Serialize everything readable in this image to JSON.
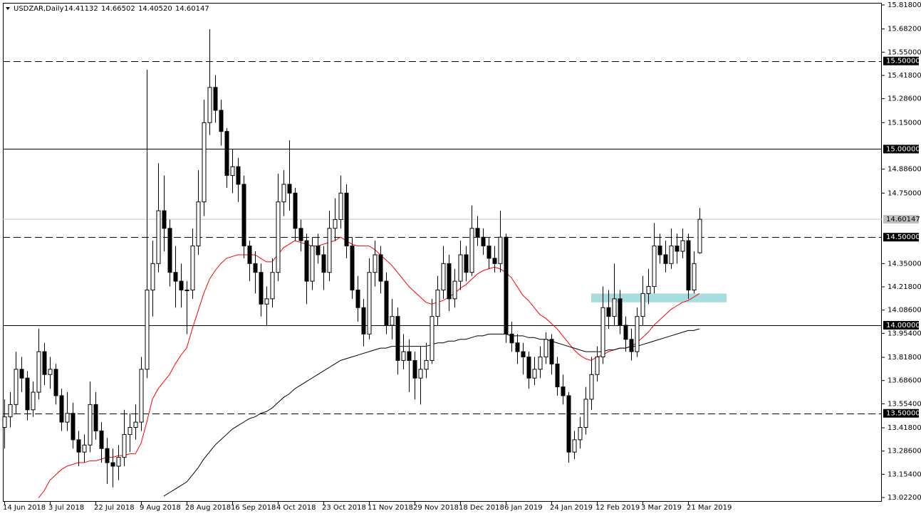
{
  "chart_data": {
    "type": "candlestick",
    "title": "USDZAR,Daily",
    "last_bar_labels": [
      "14.41132",
      "14.66502",
      "14.40520",
      "14.60147"
    ],
    "categories": [
      "14 Jun 2018",
      null,
      null,
      null,
      null,
      null,
      null,
      null,
      "3 Jul 2018",
      null,
      null,
      null,
      null,
      null,
      null,
      null,
      "22 Jul 2018",
      null,
      null,
      null,
      null,
      null,
      null,
      null,
      "9 Aug 2018",
      null,
      null,
      null,
      null,
      null,
      null,
      null,
      "28 Aug 2018",
      null,
      null,
      null,
      null,
      null,
      null,
      null,
      "16 Sep 2018",
      null,
      null,
      null,
      null,
      null,
      null,
      null,
      "4 Oct 2018",
      null,
      null,
      null,
      null,
      null,
      null,
      null,
      "23 Oct 2018",
      null,
      null,
      null,
      null,
      null,
      null,
      null,
      "11 Nov 2018",
      null,
      null,
      null,
      null,
      null,
      null,
      null,
      "29 Nov 2018",
      null,
      null,
      null,
      null,
      null,
      null,
      null,
      "18 Dec 2018",
      null,
      null,
      null,
      null,
      null,
      null,
      null,
      "6 Jan 2019",
      null,
      null,
      null,
      null,
      null,
      null,
      null,
      "24 Jan 2019",
      null,
      null,
      null,
      null,
      null,
      null,
      null,
      "12 Feb 2019",
      null,
      null,
      null,
      null,
      null,
      null,
      null,
      "3 Mar 2019",
      null,
      null,
      null,
      null,
      null,
      null,
      null,
      "21 Mar 2019",
      null,
      null
    ],
    "candles": [
      [
        13.42,
        13.58,
        13.3,
        13.48
      ],
      [
        13.48,
        13.62,
        13.42,
        13.55
      ],
      [
        13.55,
        13.85,
        13.5,
        13.75
      ],
      [
        13.75,
        13.82,
        13.62,
        13.7
      ],
      [
        13.7,
        13.74,
        13.46,
        13.52
      ],
      [
        13.52,
        13.68,
        13.48,
        13.62
      ],
      [
        13.62,
        13.98,
        13.58,
        13.85
      ],
      [
        13.85,
        13.9,
        13.66,
        13.72
      ],
      [
        13.72,
        13.82,
        13.64,
        13.75
      ],
      [
        13.75,
        13.78,
        13.55,
        13.6
      ],
      [
        13.6,
        13.64,
        13.4,
        13.45
      ],
      [
        13.45,
        13.62,
        13.4,
        13.5
      ],
      [
        13.5,
        13.56,
        13.3,
        13.35
      ],
      [
        13.35,
        13.4,
        13.2,
        13.28
      ],
      [
        13.28,
        13.38,
        13.22,
        13.32
      ],
      [
        13.32,
        13.68,
        13.28,
        13.55
      ],
      [
        13.55,
        13.62,
        13.35,
        13.4
      ],
      [
        13.4,
        13.45,
        13.22,
        13.3
      ],
      [
        13.3,
        13.36,
        13.1,
        13.22
      ],
      [
        13.22,
        13.3,
        13.08,
        13.2
      ],
      [
        13.2,
        13.32,
        13.12,
        13.25
      ],
      [
        13.25,
        13.52,
        13.2,
        13.38
      ],
      [
        13.38,
        13.5,
        13.28,
        13.42
      ],
      [
        13.42,
        13.55,
        13.35,
        13.45
      ],
      [
        13.45,
        13.82,
        13.4,
        13.75
      ],
      [
        13.75,
        15.45,
        13.7,
        14.2
      ],
      [
        14.2,
        14.48,
        14.05,
        14.35
      ],
      [
        14.35,
        14.92,
        14.3,
        14.65
      ],
      [
        14.65,
        14.85,
        14.42,
        14.55
      ],
      [
        14.55,
        14.6,
        14.22,
        14.3
      ],
      [
        14.3,
        14.45,
        14.1,
        14.25
      ],
      [
        14.25,
        14.35,
        14.1,
        14.2
      ],
      [
        14.2,
        14.25,
        13.95,
        14.2
      ],
      [
        14.2,
        14.55,
        14.15,
        14.45
      ],
      [
        14.45,
        14.88,
        14.4,
        14.7
      ],
      [
        14.7,
        15.28,
        14.62,
        15.15
      ],
      [
        15.15,
        15.68,
        15.08,
        15.35
      ],
      [
        15.35,
        15.42,
        15.15,
        15.22
      ],
      [
        15.22,
        15.28,
        15.02,
        15.1
      ],
      [
        15.1,
        15.12,
        14.78,
        14.85
      ],
      [
        14.85,
        15.0,
        14.75,
        14.9
      ],
      [
        14.9,
        14.95,
        14.7,
        14.8
      ],
      [
        14.8,
        14.85,
        14.38,
        14.45
      ],
      [
        14.45,
        14.48,
        14.25,
        14.35
      ],
      [
        14.35,
        14.42,
        14.18,
        14.3
      ],
      [
        14.3,
        14.35,
        14.05,
        14.12
      ],
      [
        14.12,
        14.22,
        14.0,
        14.15
      ],
      [
        14.15,
        14.38,
        14.1,
        14.3
      ],
      [
        14.3,
        14.86,
        14.25,
        14.7
      ],
      [
        14.7,
        14.88,
        14.62,
        14.8
      ],
      [
        14.8,
        15.05,
        14.65,
        14.75
      ],
      [
        14.75,
        14.78,
        14.48,
        14.55
      ],
      [
        14.55,
        14.6,
        14.42,
        14.48
      ],
      [
        14.48,
        14.52,
        14.12,
        14.25
      ],
      [
        14.25,
        14.5,
        14.2,
        14.45
      ],
      [
        14.45,
        14.52,
        14.35,
        14.4
      ],
      [
        14.4,
        14.45,
        14.2,
        14.3
      ],
      [
        14.3,
        14.65,
        14.25,
        14.55
      ],
      [
        14.55,
        14.72,
        14.48,
        14.6
      ],
      [
        14.6,
        14.85,
        14.55,
        14.75
      ],
      [
        14.75,
        14.8,
        14.38,
        14.45
      ],
      [
        14.45,
        14.5,
        14.15,
        14.2
      ],
      [
        14.2,
        14.28,
        14.02,
        14.1
      ],
      [
        14.1,
        14.15,
        13.88,
        13.95
      ],
      [
        13.95,
        14.38,
        13.92,
        14.3
      ],
      [
        14.3,
        14.48,
        14.22,
        14.4
      ],
      [
        14.4,
        14.45,
        14.18,
        14.25
      ],
      [
        14.25,
        14.3,
        13.95,
        14.0
      ],
      [
        14.0,
        14.15,
        13.92,
        14.05
      ],
      [
        14.05,
        14.1,
        13.72,
        13.8
      ],
      [
        13.8,
        13.95,
        13.75,
        13.85
      ],
      [
        13.85,
        13.92,
        13.62,
        13.8
      ],
      [
        13.8,
        13.85,
        13.58,
        13.7
      ],
      [
        13.7,
        13.88,
        13.55,
        13.75
      ],
      [
        13.75,
        13.9,
        13.7,
        13.8
      ],
      [
        13.8,
        14.15,
        13.78,
        14.05
      ],
      [
        14.05,
        14.28,
        14.0,
        14.2
      ],
      [
        14.2,
        14.45,
        14.15,
        14.35
      ],
      [
        14.35,
        14.4,
        14.08,
        14.15
      ],
      [
        14.15,
        14.32,
        14.1,
        14.25
      ],
      [
        14.25,
        14.48,
        14.2,
        14.4
      ],
      [
        14.4,
        14.45,
        14.25,
        14.3
      ],
      [
        14.3,
        14.68,
        14.28,
        14.55
      ],
      [
        14.55,
        14.62,
        14.45,
        14.5
      ],
      [
        14.5,
        14.55,
        14.4,
        14.45
      ],
      [
        14.45,
        14.5,
        14.32,
        14.38
      ],
      [
        14.38,
        14.45,
        14.3,
        14.35
      ],
      [
        14.35,
        14.65,
        14.3,
        14.5
      ],
      [
        14.5,
        14.52,
        13.9,
        13.95
      ],
      [
        13.95,
        14.02,
        13.85,
        13.9
      ],
      [
        13.9,
        13.95,
        13.78,
        13.85
      ],
      [
        13.85,
        13.9,
        13.72,
        13.82
      ],
      [
        13.82,
        13.85,
        13.64,
        13.7
      ],
      [
        13.7,
        13.82,
        13.66,
        13.75
      ],
      [
        13.75,
        13.88,
        13.7,
        13.82
      ],
      [
        13.82,
        13.96,
        13.78,
        13.92
      ],
      [
        13.92,
        13.95,
        13.72,
        13.78
      ],
      [
        13.78,
        13.82,
        13.6,
        13.65
      ],
      [
        13.65,
        13.72,
        13.55,
        13.6
      ],
      [
        13.6,
        13.62,
        13.22,
        13.28
      ],
      [
        13.28,
        13.4,
        13.24,
        13.35
      ],
      [
        13.35,
        13.48,
        13.3,
        13.42
      ],
      [
        13.42,
        13.65,
        13.38,
        13.58
      ],
      [
        13.58,
        13.82,
        13.52,
        13.72
      ],
      [
        13.72,
        13.88,
        13.68,
        13.82
      ],
      [
        13.82,
        14.22,
        13.78,
        14.1
      ],
      [
        14.1,
        14.2,
        13.98,
        14.05
      ],
      [
        14.05,
        14.35,
        14.0,
        14.15
      ],
      [
        14.15,
        14.2,
        13.95,
        14.0
      ],
      [
        14.0,
        14.05,
        13.85,
        13.92
      ],
      [
        13.92,
        13.98,
        13.8,
        13.85
      ],
      [
        13.85,
        14.1,
        13.82,
        14.05
      ],
      [
        14.05,
        14.28,
        14.0,
        14.18
      ],
      [
        14.18,
        14.32,
        14.12,
        14.22
      ],
      [
        14.22,
        14.58,
        14.18,
        14.45
      ],
      [
        14.45,
        14.52,
        14.35,
        14.4
      ],
      [
        14.4,
        14.48,
        14.3,
        14.35
      ],
      [
        14.35,
        14.55,
        14.32,
        14.45
      ],
      [
        14.45,
        14.52,
        14.35,
        14.42
      ],
      [
        14.42,
        14.55,
        14.38,
        14.48
      ],
      [
        14.48,
        14.52,
        14.15,
        14.2
      ],
      [
        14.2,
        14.42,
        14.18,
        14.35
      ],
      [
        14.41132,
        14.66502,
        14.4052,
        14.60147
      ]
    ],
    "up_color": "#ffffff",
    "down_color": "#000000",
    "moving_averages": [
      {
        "color": "#ff0000",
        "values": [
          null,
          null,
          null,
          null,
          null,
          null,
          13.02,
          13.06,
          13.12,
          13.15,
          13.18,
          13.2,
          13.21,
          13.22,
          13.22,
          13.23,
          13.23,
          13.24,
          13.25,
          13.25,
          13.26,
          13.26,
          13.27,
          13.27,
          13.33,
          13.45,
          13.58,
          13.64,
          13.68,
          13.72,
          13.78,
          13.83,
          13.87,
          13.98,
          14.08,
          14.18,
          14.26,
          14.31,
          14.35,
          14.38,
          14.39,
          14.4,
          14.4,
          14.4,
          14.4,
          14.38,
          14.36,
          14.36,
          14.4,
          14.44,
          14.46,
          14.48,
          14.47,
          14.46,
          14.45,
          14.45,
          14.46,
          14.47,
          14.48,
          14.5,
          14.48,
          14.46,
          14.45,
          14.45,
          14.45,
          14.43,
          14.4,
          14.37,
          14.34,
          14.3,
          14.26,
          14.22,
          14.19,
          14.16,
          14.13,
          14.12,
          14.13,
          14.14,
          14.16,
          14.18,
          14.21,
          14.23,
          14.26,
          14.29,
          14.31,
          14.32,
          14.33,
          14.32,
          14.3,
          14.27,
          14.22,
          14.17,
          14.14,
          14.1,
          14.06,
          14.04,
          14.01,
          13.98,
          13.94,
          13.9,
          13.86,
          13.83,
          13.81,
          13.8,
          13.82,
          13.83,
          13.85,
          13.86,
          13.87,
          13.87,
          13.88,
          13.9,
          13.93,
          13.96,
          14.0,
          14.03,
          14.06,
          14.09,
          14.11,
          14.13,
          14.14,
          14.16,
          14.18
        ]
      },
      {
        "color": "#000000",
        "values": [
          null,
          null,
          null,
          null,
          null,
          null,
          null,
          null,
          null,
          null,
          null,
          null,
          null,
          null,
          null,
          null,
          null,
          null,
          null,
          null,
          null,
          null,
          null,
          null,
          null,
          null,
          null,
          null,
          13.03,
          13.05,
          13.07,
          13.09,
          13.11,
          13.15,
          13.19,
          13.24,
          13.28,
          13.32,
          13.35,
          13.38,
          13.41,
          13.43,
          13.45,
          13.47,
          13.48,
          13.5,
          13.51,
          13.53,
          13.56,
          13.59,
          13.61,
          13.64,
          13.66,
          13.68,
          13.7,
          13.72,
          13.74,
          13.76,
          13.78,
          13.8,
          13.81,
          13.82,
          13.83,
          13.84,
          13.85,
          13.86,
          13.87,
          13.87,
          13.88,
          13.88,
          13.88,
          13.88,
          13.88,
          13.88,
          13.88,
          13.89,
          13.9,
          13.9,
          13.91,
          13.91,
          13.92,
          13.92,
          13.93,
          13.94,
          13.94,
          13.95,
          13.95,
          13.95,
          13.95,
          13.94,
          13.94,
          13.94,
          13.93,
          13.93,
          13.92,
          13.92,
          13.91,
          13.9,
          13.89,
          13.88,
          13.87,
          13.86,
          13.85,
          13.85,
          13.85,
          13.85,
          13.86,
          13.86,
          13.87,
          13.87,
          13.88,
          13.88,
          13.89,
          13.9,
          13.91,
          13.92,
          13.93,
          13.94,
          13.95,
          13.96,
          13.97,
          13.97,
          13.98
        ]
      }
    ],
    "ylim": [
      12.998,
      15.83
    ],
    "yticks": [
      {
        "value": 15.818,
        "label": "15.81800"
      },
      {
        "value": 15.682,
        "label": "15.68200"
      },
      {
        "value": 15.55,
        "label": "15.55000"
      },
      {
        "value": 15.418,
        "label": "15.41800"
      },
      {
        "value": 15.286,
        "label": "15.28600"
      },
      {
        "value": 15.15,
        "label": "15.15000"
      },
      {
        "value": 14.886,
        "label": "14.88600"
      },
      {
        "value": 14.75,
        "label": "14.75000"
      },
      {
        "value": 14.35,
        "label": "14.35000"
      },
      {
        "value": 14.218,
        "label": "14.21800"
      },
      {
        "value": 14.086,
        "label": "14.08600"
      },
      {
        "value": 13.954,
        "label": "13.95400"
      },
      {
        "value": 13.818,
        "label": "13.81800"
      },
      {
        "value": 13.686,
        "label": "13.68600"
      },
      {
        "value": 13.554,
        "label": "13.55400"
      },
      {
        "value": 13.418,
        "label": "13.41800"
      },
      {
        "value": 13.286,
        "label": "13.28600"
      },
      {
        "value": 13.154,
        "label": "13.15400"
      },
      {
        "value": 13.022,
        "label": "13.02200"
      }
    ],
    "levels": [
      {
        "value": 15.5,
        "label": "15.50000",
        "style": "dashed"
      },
      {
        "value": 15.0,
        "label": "15.00000",
        "style": "solid"
      },
      {
        "value": 14.5,
        "label": "14.50000",
        "style": "dashed"
      },
      {
        "value": 14.0,
        "label": "14.00000",
        "style": "solid"
      },
      {
        "value": 13.5,
        "label": "13.50000",
        "style": "dashed"
      }
    ],
    "current_price": {
      "value": 14.60147,
      "label": "14.60147",
      "color": "#c0c0c0"
    },
    "zone": {
      "from_index": 103,
      "to_index": 126.75,
      "low": 14.13,
      "high": 14.18,
      "color": "#a8dde0"
    }
  }
}
